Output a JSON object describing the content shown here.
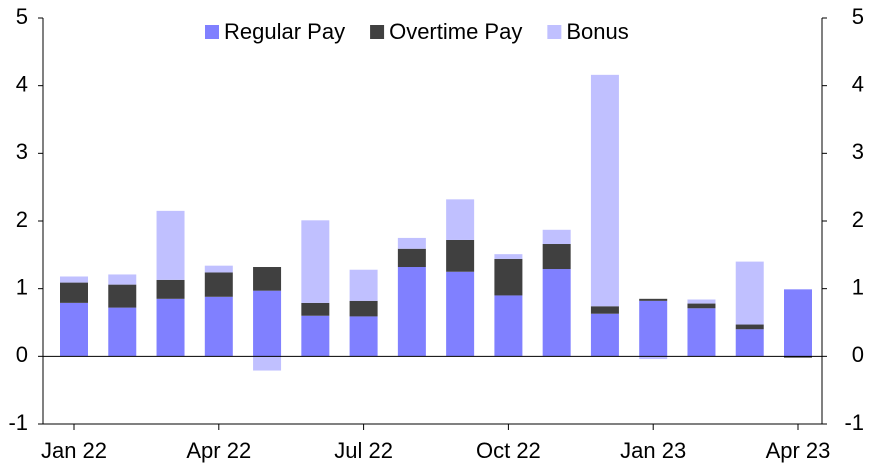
{
  "chart_data": {
    "type": "stacked_bar",
    "categories": [
      "Jan 22",
      null,
      null,
      "Apr 22",
      null,
      null,
      "Jul 22",
      null,
      null,
      "Oct 22",
      null,
      null,
      "Jan 23",
      null,
      null,
      "Apr 23"
    ],
    "series": [
      {
        "name": "Regular Pay",
        "color": "#8080ff",
        "values": [
          0.79,
          0.72,
          0.85,
          0.88,
          0.97,
          0.6,
          0.59,
          1.32,
          1.25,
          0.9,
          1.29,
          0.63,
          0.82,
          0.71,
          0.4,
          0.99
        ]
      },
      {
        "name": "Overtime Pay",
        "color": "#404040",
        "values": [
          0.3,
          0.34,
          0.28,
          0.36,
          0.35,
          0.19,
          0.23,
          0.27,
          0.47,
          0.54,
          0.37,
          0.11,
          0.03,
          0.07,
          0.07,
          -0.02
        ]
      },
      {
        "name": "Bonus",
        "color": "#c0c0ff",
        "values": [
          0.09,
          0.15,
          1.02,
          0.1,
          -0.21,
          1.22,
          0.46,
          0.16,
          0.6,
          0.07,
          0.21,
          3.42,
          -0.04,
          0.06,
          0.93,
          0
        ]
      }
    ],
    "ylim": [
      -1,
      5
    ],
    "yticks": [
      -1,
      0,
      1,
      2,
      3,
      4,
      5
    ],
    "y2lim": [
      -1,
      5
    ],
    "y2ticks": [
      -1,
      0,
      1,
      2,
      3,
      4,
      5
    ],
    "grid": false,
    "legend": "top"
  }
}
